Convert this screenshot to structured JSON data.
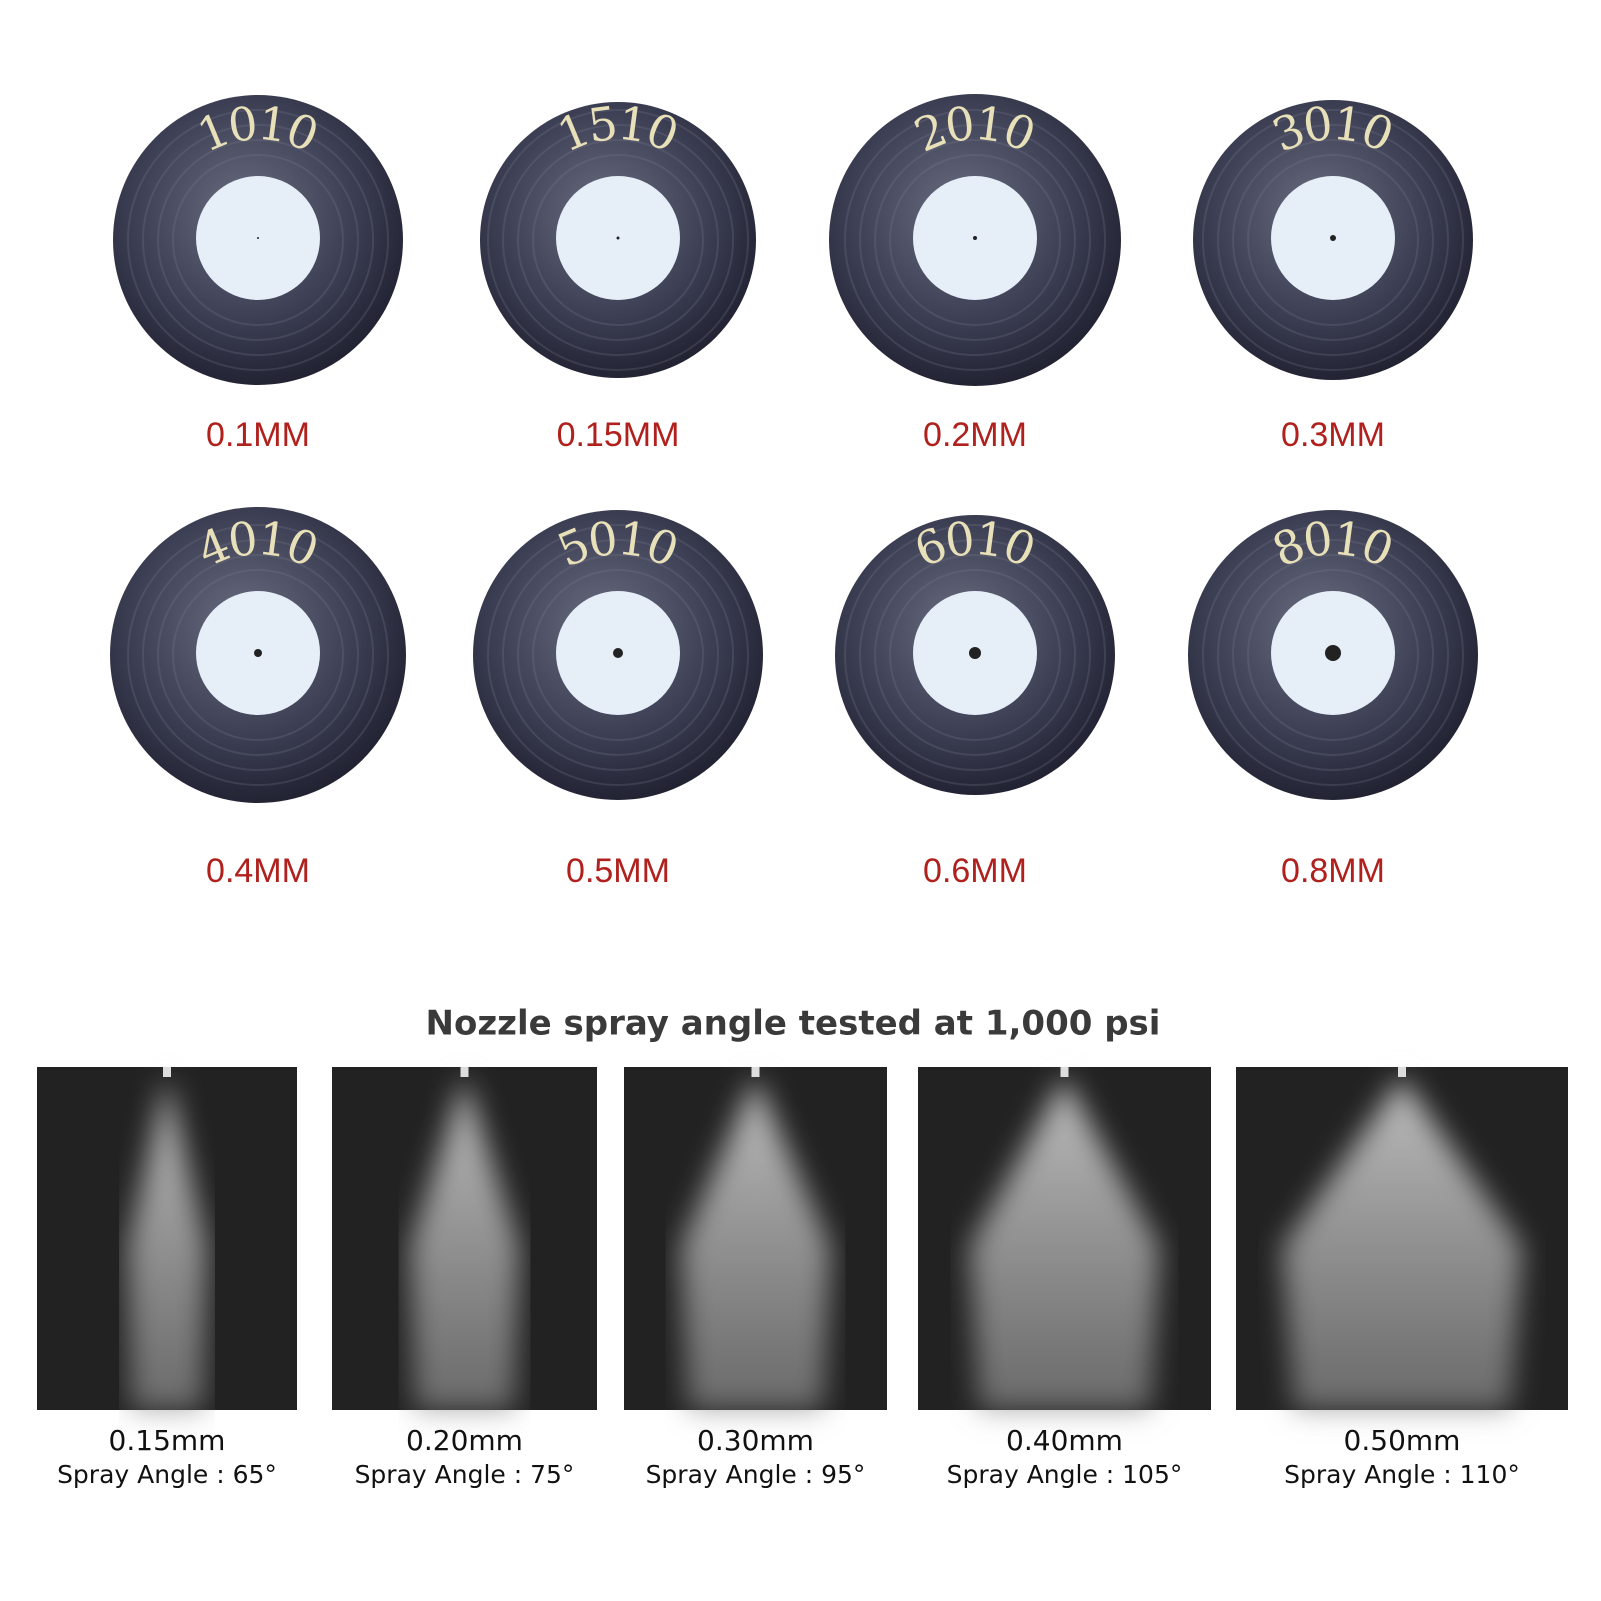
{
  "nozzles": [
    {
      "code": "1010",
      "size": "0.1MM"
    },
    {
      "code": "1510",
      "size": "0.15MM"
    },
    {
      "code": "2010",
      "size": "0.2MM"
    },
    {
      "code": "3010",
      "size": "0.3MM"
    },
    {
      "code": "4010",
      "size": "0.4MM"
    },
    {
      "code": "5010",
      "size": "0.5MM"
    },
    {
      "code": "6010",
      "size": "0.6MM"
    },
    {
      "code": "8010",
      "size": "0.8MM"
    }
  ],
  "spray": {
    "title": "Nozzle spray angle tested at 1,000 psi",
    "items": [
      {
        "size": "0.15mm",
        "angle": "Spray Angle : 65°"
      },
      {
        "size": "0.20mm",
        "angle": "Spray Angle : 75°"
      },
      {
        "size": "0.30mm",
        "angle": "Spray Angle : 95°"
      },
      {
        "size": "0.40mm",
        "angle": "Spray Angle : 105°"
      },
      {
        "size": "0.50mm",
        "angle": "Spray Angle : 110°"
      }
    ]
  }
}
